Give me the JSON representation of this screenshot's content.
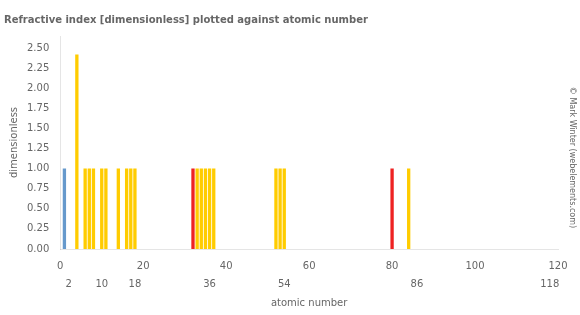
{
  "chart_data": {
    "type": "bar",
    "title": "Refractive index [dimensionless] plotted against atomic number",
    "xlabel": "atomic number",
    "ylabel": "dimensionless",
    "x": [
      1,
      4,
      6,
      7,
      8,
      10,
      11,
      14,
      16,
      17,
      18,
      32,
      33,
      34,
      35,
      36,
      37,
      52,
      53,
      54,
      80,
      84
    ],
    "values": [
      1.0,
      2.42,
      1.0,
      1.0,
      1.0,
      1.0,
      1.0,
      1.0,
      1.0,
      1.0,
      1.0,
      1.0,
      1.0,
      1.0,
      1.0,
      1.0,
      1.0,
      1.0,
      1.0,
      1.0,
      1.0,
      1.0
    ],
    "colors": [
      "#6699cc",
      "#ffcc00",
      "#ffcc00",
      "#ffcc00",
      "#ffcc00",
      "#ffcc00",
      "#ffcc00",
      "#ffcc00",
      "#ffcc00",
      "#ffcc00",
      "#ffcc00",
      "#ee2222",
      "#ffcc00",
      "#ffcc00",
      "#ffcc00",
      "#ffcc00",
      "#ffcc00",
      "#ffcc00",
      "#ffcc00",
      "#ffcc00",
      "#ee2222",
      "#ffcc00"
    ],
    "xlim": [
      0,
      120
    ],
    "xticks": [
      0,
      20,
      40,
      60,
      80,
      100,
      120
    ],
    "x2lim": [
      0,
      120
    ],
    "x2ticks": [
      2,
      10,
      18,
      36,
      54,
      86,
      118
    ],
    "ylim": [
      0,
      2.65
    ],
    "yticks": [
      {
        "value": 0,
        "label": "0.00"
      },
      {
        "value": 0.25,
        "label": "0.25"
      },
      {
        "value": 0.5,
        "label": "0.50"
      },
      {
        "value": 0.75,
        "label": "0.75"
      },
      {
        "value": 1,
        "label": "1.00"
      },
      {
        "value": 1.25,
        "label": "1.25"
      },
      {
        "value": 1.5,
        "label": "1.50"
      },
      {
        "value": 1.75,
        "label": "1.75"
      },
      {
        "value": 2,
        "label": "2.00"
      },
      {
        "value": 2.25,
        "label": "2.25"
      },
      {
        "value": 2.5,
        "label": "2.50"
      }
    ],
    "annotations": [
      "© Mark Winter (webelements.com)"
    ],
    "grid": false
  }
}
